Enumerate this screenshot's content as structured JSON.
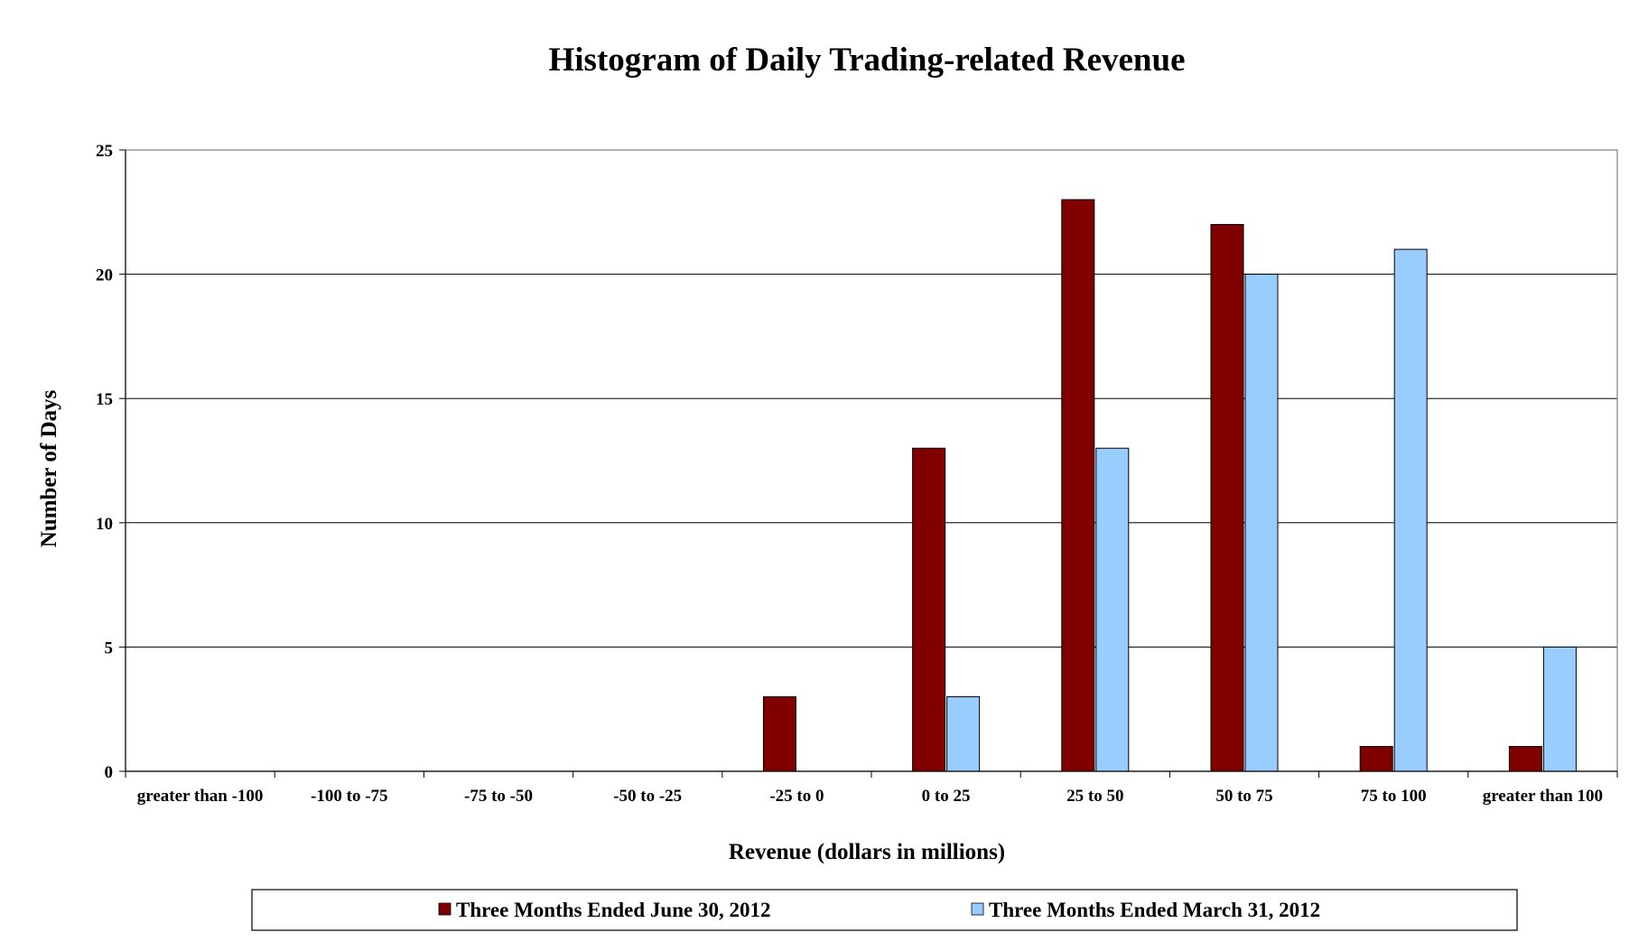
{
  "chart_data": {
    "type": "bar",
    "title": "Histogram of Daily Trading-related Revenue",
    "xlabel": "Revenue (dollars in millions)",
    "ylabel": "Number of Days",
    "ylim": [
      0,
      25
    ],
    "yticks": [
      "0",
      "5",
      "10",
      "15",
      "20",
      "25"
    ],
    "grid": true,
    "legend_position": "bottom",
    "categories": [
      "greater than -100",
      "-100 to  -75",
      "-75 to -50",
      "-50 to -25",
      "-25 to 0",
      "0 to 25",
      "25 to 50",
      "50 to 75",
      "75 to 100",
      "greater than 100"
    ],
    "series": [
      {
        "name": "Three Months Ended June 30, 2012",
        "color": "#800000",
        "values": [
          0,
          0,
          0,
          0,
          3,
          13,
          23,
          22,
          1,
          1
        ]
      },
      {
        "name": "Three Months Ended March 31, 2012",
        "color": "#99ccff",
        "values": [
          0,
          0,
          0,
          0,
          0,
          3,
          13,
          20,
          21,
          5
        ]
      }
    ]
  }
}
